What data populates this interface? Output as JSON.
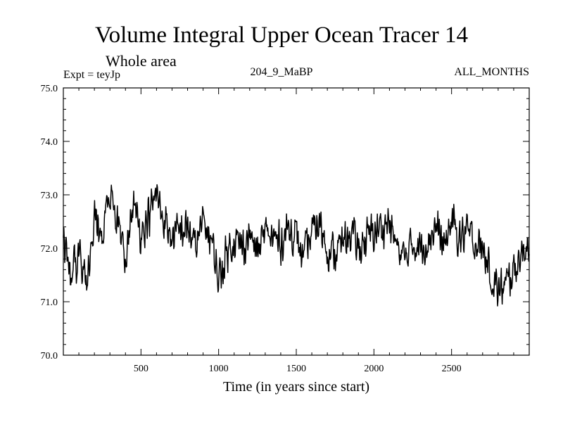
{
  "chart_data": {
    "type": "line",
    "title": "Volume Integral Upper Ocean Tracer 14",
    "subtitle": "Whole area",
    "annotations": {
      "left": "Expt = teyJp",
      "center": "204_9_MaBP",
      "right": "ALL_MONTHS"
    },
    "xlabel": "Time (in years since start)",
    "ylabel": "",
    "xlim": [
      0,
      3000
    ],
    "ylim": [
      70.0,
      75.0
    ],
    "xticks": [
      500,
      1000,
      1500,
      2000,
      2500
    ],
    "xtick_labels": [
      "500",
      "1000",
      "1500",
      "2000",
      "2500"
    ],
    "yticks": [
      70.0,
      71.0,
      72.0,
      73.0,
      74.0,
      75.0
    ],
    "ytick_labels": [
      "70.0",
      "71.0",
      "72.0",
      "73.0",
      "74.0",
      "75.0"
    ],
    "series": [
      {
        "name": "Volume Integral Upper Ocean Tracer 14",
        "x": [
          0,
          50,
          100,
          150,
          200,
          250,
          300,
          350,
          400,
          450,
          500,
          550,
          600,
          650,
          700,
          750,
          800,
          850,
          900,
          950,
          1000,
          1050,
          1100,
          1150,
          1200,
          1250,
          1300,
          1350,
          1400,
          1450,
          1500,
          1550,
          1600,
          1650,
          1700,
          1750,
          1800,
          1850,
          1900,
          1950,
          2000,
          2050,
          2100,
          2150,
          2200,
          2250,
          2300,
          2350,
          2400,
          2450,
          2500,
          2550,
          2600,
          2650,
          2700,
          2750,
          2800,
          2850,
          2900,
          2950,
          3000
        ],
        "values": [
          72.1,
          71.6,
          71.8,
          71.3,
          72.5,
          72.3,
          72.9,
          72.4,
          71.7,
          72.8,
          72.3,
          72.6,
          73.0,
          72.5,
          72.2,
          72.3,
          72.4,
          72.0,
          72.5,
          72.2,
          71.4,
          71.9,
          72.2,
          72.0,
          72.3,
          71.9,
          72.3,
          72.2,
          72.1,
          72.4,
          72.2,
          71.8,
          72.3,
          72.5,
          72.0,
          71.9,
          72.1,
          72.3,
          72.0,
          72.2,
          72.3,
          72.4,
          72.5,
          72.0,
          71.8,
          72.1,
          72.0,
          72.2,
          72.4,
          72.0,
          72.5,
          72.2,
          72.3,
          72.1,
          72.0,
          71.5,
          71.2,
          71.3,
          71.6,
          71.9,
          72.2
        ],
        "noise_amplitude": 0.45,
        "color": "#000000"
      }
    ]
  }
}
